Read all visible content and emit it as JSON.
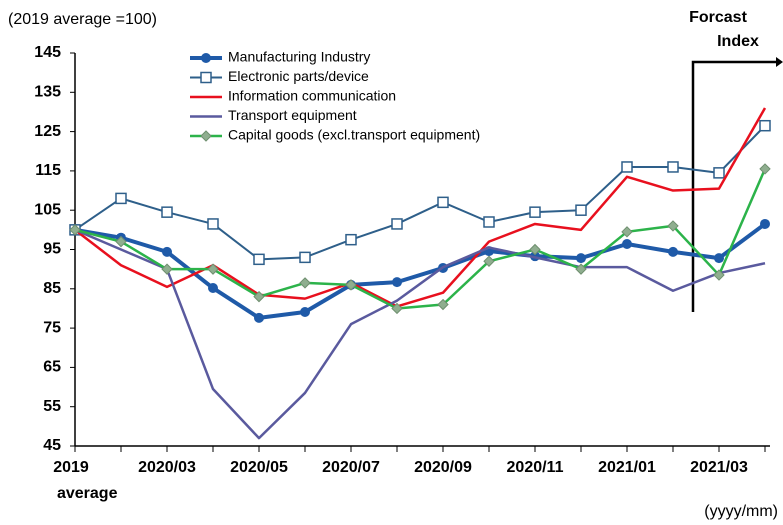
{
  "chart_data": {
    "type": "line",
    "subtitle": "(2019 average =100)",
    "annotation": [
      "Forcast",
      "Index"
    ],
    "x_label": "(yyyy/mm)",
    "categories": [
      "2019 average",
      null,
      "2020/03",
      null,
      "2020/05",
      null,
      "2020/07",
      null,
      "2020/09",
      null,
      "2020/11",
      null,
      "2021/01",
      null,
      "2021/03",
      null
    ],
    "ylim": [
      45,
      145
    ],
    "yticks": [
      45,
      55,
      65,
      75,
      85,
      95,
      105,
      115,
      125,
      135,
      145
    ],
    "series": [
      {
        "name": "Manufacturing Industry",
        "color": "#1f5aa8",
        "marker": "circle",
        "values": [
          100,
          98,
          94.4,
          85.2,
          77.6,
          79.1,
          86,
          86.7,
          90.3,
          94.6,
          93.3,
          92.8,
          96.4,
          94.4,
          92.8,
          101.5
        ]
      },
      {
        "name": "Electronic parts/device",
        "color": "#2e5f8a",
        "marker": "square",
        "values": [
          100,
          108,
          104.5,
          101.5,
          92.5,
          93,
          97.5,
          101.5,
          107,
          102,
          104.5,
          105,
          116,
          116,
          114.5,
          126.5
        ]
      },
      {
        "name": "Information communication",
        "color": "#e8101e",
        "marker": null,
        "values": [
          100,
          91,
          85.5,
          91,
          83.5,
          82.5,
          86.5,
          80.5,
          84,
          97,
          101.5,
          100,
          113.5,
          110,
          110.5,
          131
        ]
      },
      {
        "name": "Transport equipment",
        "color": "#5a5a9e",
        "marker": null,
        "values": [
          100,
          95,
          90,
          59.5,
          47,
          58.5,
          76,
          82,
          90.5,
          95.5,
          93,
          90.5,
          90.5,
          84.5,
          89,
          91.5
        ]
      },
      {
        "name": "Capital goods (excl.transport equipment)",
        "color": "#2cb34a",
        "marker": "diamond",
        "values": [
          100,
          97,
          90,
          90,
          83,
          86.5,
          86,
          80,
          81,
          92,
          95,
          90,
          99.5,
          101,
          88.5,
          115.5
        ]
      }
    ]
  }
}
